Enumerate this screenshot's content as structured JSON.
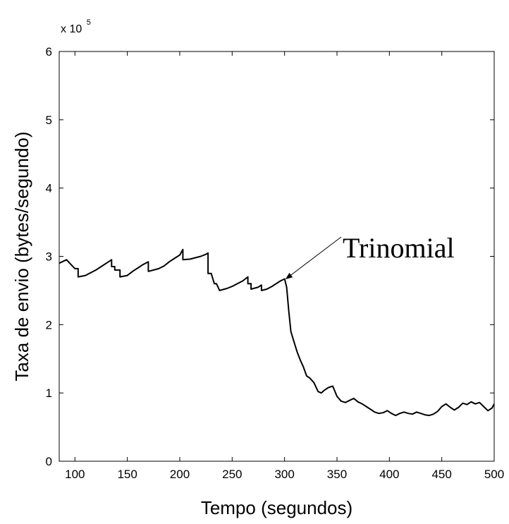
{
  "chart_data": {
    "type": "line",
    "title": "",
    "xlabel": "Tempo (segundos)",
    "ylabel": "Taxa de envio (bytes/segundo)",
    "y_multiplier": {
      "base": "x 10",
      "exponent": "5"
    },
    "xlim": [
      85,
      500
    ],
    "ylim": [
      0,
      6
    ],
    "x_ticks": [
      100,
      150,
      200,
      250,
      300,
      350,
      400,
      450,
      500
    ],
    "y_ticks": [
      0,
      1,
      2,
      3,
      4,
      5,
      6
    ],
    "grid": false,
    "series": [
      {
        "name": "Trinomial",
        "color": "#000000",
        "x": [
          85,
          92,
          95,
          100,
          103,
          103,
          110,
          115,
          120,
          125,
          130,
          135,
          135,
          138,
          138,
          143,
          143,
          150,
          155,
          160,
          165,
          170,
          170,
          175,
          180,
          185,
          190,
          195,
          200,
          203,
          203,
          210,
          215,
          220,
          225,
          227,
          227,
          230,
          233,
          235,
          238,
          238,
          245,
          250,
          255,
          260,
          265,
          265,
          268,
          268,
          275,
          278,
          278,
          283,
          288,
          292,
          296,
          300,
          302,
          304,
          306,
          308,
          310,
          312,
          315,
          318,
          321,
          324,
          328,
          332,
          335,
          338,
          342,
          346,
          350,
          354,
          358,
          362,
          366,
          370,
          374,
          378,
          382,
          386,
          390,
          394,
          398,
          402,
          406,
          410,
          414,
          418,
          422,
          426,
          430,
          434,
          438,
          442,
          446,
          450,
          454,
          458,
          462,
          466,
          470,
          474,
          478,
          482,
          486,
          490,
          494,
          498,
          500
        ],
        "values": [
          2.9,
          2.95,
          2.9,
          2.82,
          2.82,
          2.7,
          2.72,
          2.76,
          2.8,
          2.85,
          2.9,
          2.95,
          2.85,
          2.85,
          2.8,
          2.8,
          2.7,
          2.72,
          2.78,
          2.83,
          2.88,
          2.92,
          2.78,
          2.8,
          2.82,
          2.86,
          2.92,
          2.97,
          3.02,
          3.1,
          2.95,
          2.96,
          2.98,
          3.0,
          3.03,
          3.05,
          2.75,
          2.75,
          2.6,
          2.6,
          2.5,
          2.5,
          2.53,
          2.56,
          2.6,
          2.64,
          2.7,
          2.6,
          2.6,
          2.52,
          2.55,
          2.58,
          2.5,
          2.52,
          2.56,
          2.6,
          2.64,
          2.67,
          2.55,
          2.2,
          1.9,
          1.8,
          1.7,
          1.6,
          1.48,
          1.38,
          1.25,
          1.22,
          1.15,
          1.02,
          1.0,
          1.04,
          1.08,
          1.1,
          0.95,
          0.88,
          0.86,
          0.89,
          0.92,
          0.87,
          0.84,
          0.8,
          0.76,
          0.72,
          0.7,
          0.71,
          0.74,
          0.7,
          0.67,
          0.7,
          0.72,
          0.7,
          0.69,
          0.72,
          0.7,
          0.68,
          0.67,
          0.69,
          0.73,
          0.8,
          0.84,
          0.79,
          0.75,
          0.79,
          0.85,
          0.83,
          0.87,
          0.84,
          0.86,
          0.8,
          0.74,
          0.78,
          0.84
        ]
      }
    ],
    "annotations": [
      {
        "text": "Trinomial",
        "x": 300,
        "y": 2.65
      }
    ]
  }
}
